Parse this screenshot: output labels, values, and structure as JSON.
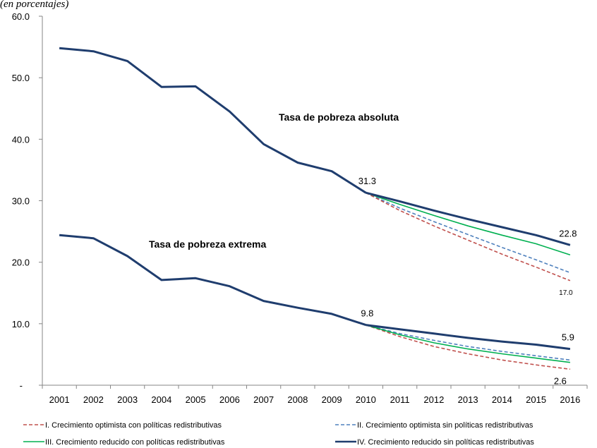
{
  "chart_data": {
    "type": "line",
    "partial_title": "(en porcentajes)",
    "x": [
      2001,
      2002,
      2003,
      2004,
      2005,
      2006,
      2007,
      2008,
      2009,
      2010,
      2011,
      2012,
      2013,
      2014,
      2015,
      2016
    ],
    "ylim": [
      0,
      60
    ],
    "yticks": [
      "-",
      "10.0",
      "20.0",
      "30.0",
      "40.0",
      "50.0",
      "60.0"
    ],
    "grid": false,
    "legend_position": "bottom",
    "annotations": {
      "absolute": "Tasa de pobreza absoluta",
      "extreme": "Tasa de pobreza extrema"
    },
    "groups": [
      {
        "key": "absolute",
        "history": [
          54.8,
          54.3,
          52.7,
          48.5,
          48.6,
          44.5,
          39.2,
          36.2,
          34.8,
          31.3
        ],
        "scenarios": [
          {
            "scenario": "I",
            "values": [
              31.3,
              28.4,
              25.9,
              23.6,
              21.3,
              19.2,
              17.0
            ]
          },
          {
            "scenario": "II",
            "values": [
              31.3,
              28.8,
              26.6,
              24.5,
              22.4,
              20.4,
              18.3
            ]
          },
          {
            "scenario": "III",
            "values": [
              31.3,
              29.4,
              27.6,
              25.9,
              24.4,
              23.0,
              21.2
            ]
          },
          {
            "scenario": "IV",
            "values": [
              31.3,
              29.9,
              28.4,
              27.0,
              25.7,
              24.4,
              22.8
            ]
          }
        ],
        "labels": {
          "start": "31.3",
          "iv_end": "22.8",
          "i_end": "17.0"
        }
      },
      {
        "key": "extreme",
        "history": [
          24.4,
          23.9,
          21.0,
          17.1,
          17.4,
          16.1,
          13.7,
          12.6,
          11.6,
          9.8
        ],
        "scenarios": [
          {
            "scenario": "I",
            "values": [
              9.8,
              7.9,
              6.3,
              5.1,
              4.1,
              3.3,
              2.6
            ]
          },
          {
            "scenario": "II",
            "values": [
              9.8,
              8.4,
              7.3,
              6.3,
              5.5,
              4.8,
              4.1
            ]
          },
          {
            "scenario": "III",
            "values": [
              9.8,
              8.2,
              6.9,
              5.9,
              5.1,
              4.4,
              3.7
            ]
          },
          {
            "scenario": "IV",
            "values": [
              9.8,
              9.1,
              8.4,
              7.7,
              7.1,
              6.6,
              5.9
            ]
          }
        ],
        "labels": {
          "start": "9.8",
          "iv_end": "5.9",
          "i_end": "2.6"
        }
      }
    ],
    "series": [
      {
        "id": "I",
        "name": "I. Crecimiento optimista con políticas redistributivas",
        "color": "#C0504D",
        "dash": "dashed",
        "width": "thin"
      },
      {
        "id": "II",
        "name": "II. Crecimiento optimista sin políticas redistributivas",
        "color": "#4F81BD",
        "dash": "dashed",
        "width": "thin"
      },
      {
        "id": "III",
        "name": "III. Crecimiento reducido con políticas redistributivas",
        "color": "#00B050",
        "dash": "solid",
        "width": "thin"
      },
      {
        "id": "IV",
        "name": "IV. Crecimiento reducido sin políticas redistributivas",
        "color": "#1F3D6E",
        "dash": "solid",
        "width": "thick"
      }
    ]
  }
}
